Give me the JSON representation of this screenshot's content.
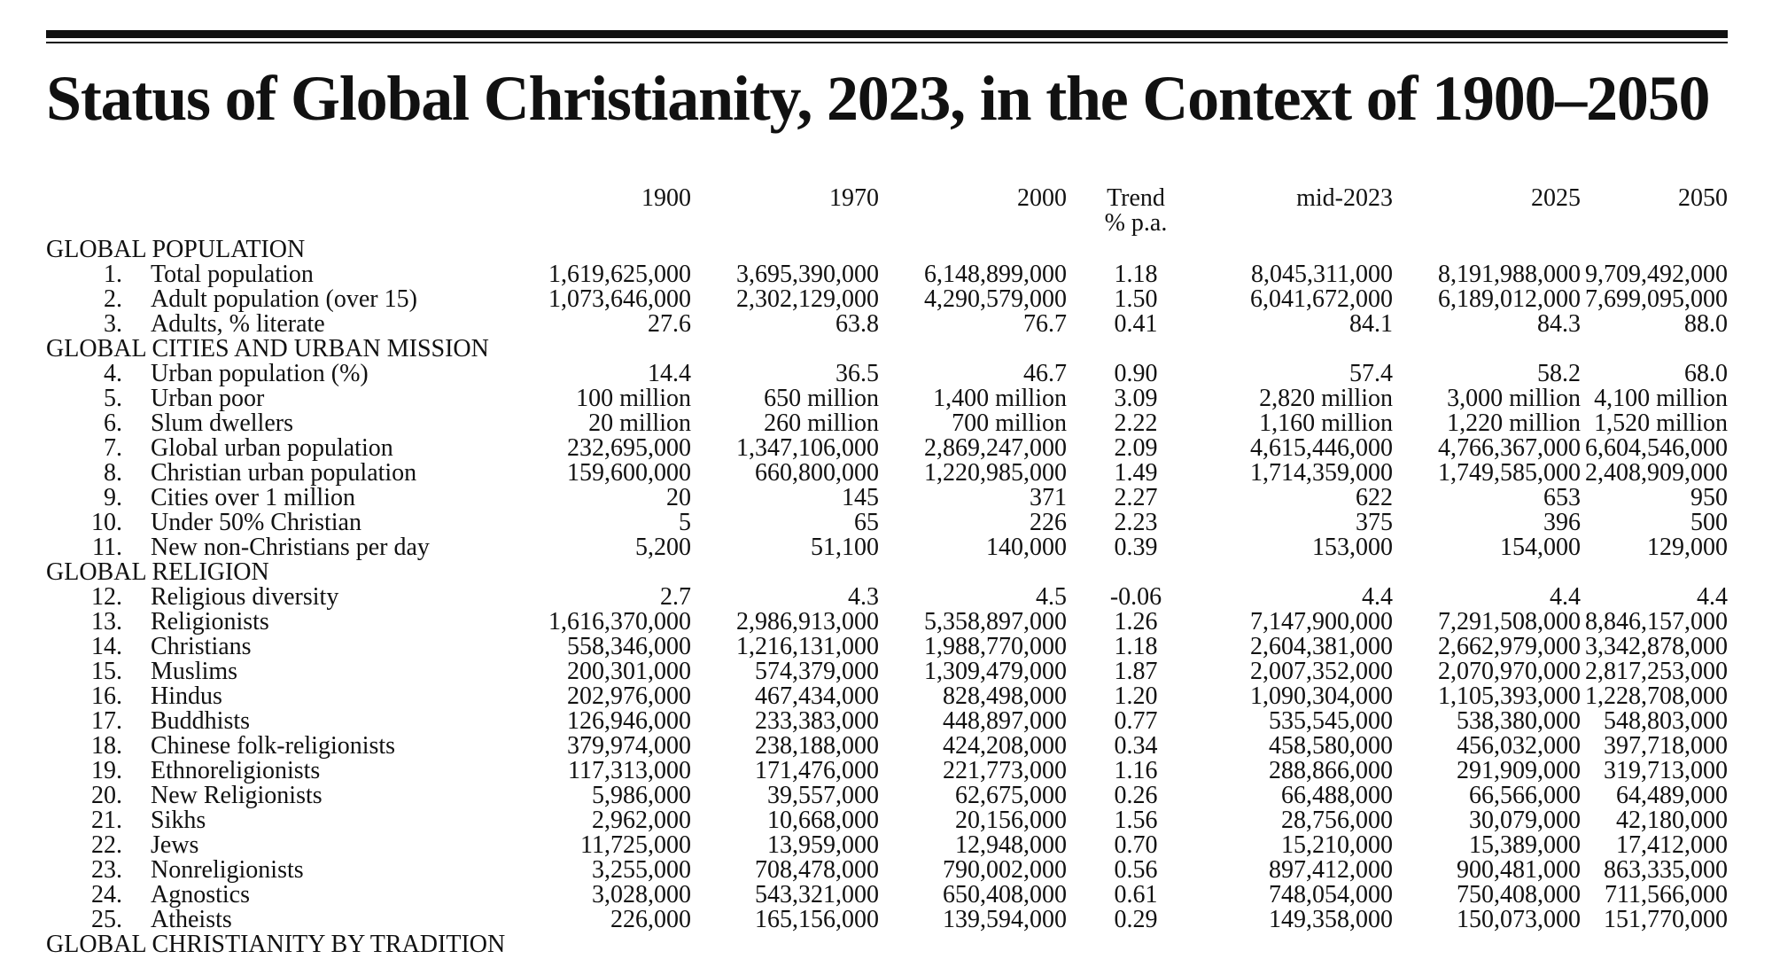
{
  "title": "Status of Global Christianity, 2023, in the Context of 1900–2050",
  "columns": {
    "c1900": "1900",
    "c1970": "1970",
    "c2000": "2000",
    "trend_line1": "Trend",
    "trend_line2": "% p.a.",
    "cmid2023": "mid-2023",
    "c2025": "2025",
    "c2050": "2050"
  },
  "sections": [
    {
      "title": "GLOBAL POPULATION",
      "rows": [
        {
          "n": "1.",
          "label": "Total population",
          "v1900": "1,619,625,000",
          "v1970": "3,695,390,000",
          "v2000": "6,148,899,000",
          "trend": "1.18",
          "v2023": "8,045,311,000",
          "v2025": "8,191,988,000",
          "v2050": "9,709,492,000"
        },
        {
          "n": "2.",
          "label": "Adult population (over 15)",
          "v1900": "1,073,646,000",
          "v1970": "2,302,129,000",
          "v2000": "4,290,579,000",
          "trend": "1.50",
          "v2023": "6,041,672,000",
          "v2025": "6,189,012,000",
          "v2050": "7,699,095,000"
        },
        {
          "n": "3.",
          "label": "Adults, % literate",
          "v1900": "27.6",
          "v1970": "63.8",
          "v2000": "76.7",
          "trend": "0.41",
          "v2023": "84.1",
          "v2025": "84.3",
          "v2050": "88.0"
        }
      ]
    },
    {
      "title": "GLOBAL CITIES AND URBAN MISSION",
      "rows": [
        {
          "n": "4.",
          "label": "Urban population (%)",
          "v1900": "14.4",
          "v1970": "36.5",
          "v2000": "46.7",
          "trend": "0.90",
          "v2023": "57.4",
          "v2025": "58.2",
          "v2050": "68.0"
        },
        {
          "n": "5.",
          "label": "Urban poor",
          "v1900": "100 million",
          "v1970": "650 million",
          "v2000": "1,400 million",
          "trend": "3.09",
          "v2023": "2,820 million",
          "v2025": "3,000 million",
          "v2050": "4,100 million"
        },
        {
          "n": "6.",
          "label": "Slum dwellers",
          "v1900": "20 million",
          "v1970": "260 million",
          "v2000": "700 million",
          "trend": "2.22",
          "v2023": "1,160 million",
          "v2025": "1,220 million",
          "v2050": "1,520 million"
        },
        {
          "n": "7.",
          "label": "Global urban population",
          "v1900": "232,695,000",
          "v1970": "1,347,106,000",
          "v2000": "2,869,247,000",
          "trend": "2.09",
          "v2023": "4,615,446,000",
          "v2025": "4,766,367,000",
          "v2050": "6,604,546,000"
        },
        {
          "n": "8.",
          "label": "Christian urban population",
          "v1900": "159,600,000",
          "v1970": "660,800,000",
          "v2000": "1,220,985,000",
          "trend": "1.49",
          "v2023": "1,714,359,000",
          "v2025": "1,749,585,000",
          "v2050": "2,408,909,000"
        },
        {
          "n": "9.",
          "label": "Cities over 1 million",
          "v1900": "20",
          "v1970": "145",
          "v2000": "371",
          "trend": "2.27",
          "v2023": "622",
          "v2025": "653",
          "v2050": "950"
        },
        {
          "n": "10.",
          "label": "Under 50% Christian",
          "v1900": "5",
          "v1970": "65",
          "v2000": "226",
          "trend": "2.23",
          "v2023": "375",
          "v2025": "396",
          "v2050": "500"
        },
        {
          "n": "11.",
          "label": "New non-Christians per day",
          "v1900": "5,200",
          "v1970": "51,100",
          "v2000": "140,000",
          "trend": "0.39",
          "v2023": "153,000",
          "v2025": "154,000",
          "v2050": "129,000"
        }
      ]
    },
    {
      "title": "GLOBAL RELIGION",
      "rows": [
        {
          "n": "12.",
          "label": "Religious diversity",
          "v1900": "2.7",
          "v1970": "4.3",
          "v2000": "4.5",
          "trend": "-0.06",
          "v2023": "4.4",
          "v2025": "4.4",
          "v2050": "4.4"
        },
        {
          "n": "13.",
          "label": "Religionists",
          "v1900": "1,616,370,000",
          "v1970": "2,986,913,000",
          "v2000": "5,358,897,000",
          "trend": "1.26",
          "v2023": "7,147,900,000",
          "v2025": "7,291,508,000",
          "v2050": "8,846,157,000"
        },
        {
          "n": "14.",
          "label": "Christians",
          "v1900": "558,346,000",
          "v1970": "1,216,131,000",
          "v2000": "1,988,770,000",
          "trend": "1.18",
          "v2023": "2,604,381,000",
          "v2025": "2,662,979,000",
          "v2050": "3,342,878,000"
        },
        {
          "n": "15.",
          "label": "Muslims",
          "v1900": "200,301,000",
          "v1970": "574,379,000",
          "v2000": "1,309,479,000",
          "trend": "1.87",
          "v2023": "2,007,352,000",
          "v2025": "2,070,970,000",
          "v2050": "2,817,253,000"
        },
        {
          "n": "16.",
          "label": "Hindus",
          "v1900": "202,976,000",
          "v1970": "467,434,000",
          "v2000": "828,498,000",
          "trend": "1.20",
          "v2023": "1,090,304,000",
          "v2025": "1,105,393,000",
          "v2050": "1,228,708,000"
        },
        {
          "n": "17.",
          "label": "Buddhists",
          "v1900": "126,946,000",
          "v1970": "233,383,000",
          "v2000": "448,897,000",
          "trend": "0.77",
          "v2023": "535,545,000",
          "v2025": "538,380,000",
          "v2050": "548,803,000"
        },
        {
          "n": "18.",
          "label": "Chinese folk-religionists",
          "v1900": "379,974,000",
          "v1970": "238,188,000",
          "v2000": "424,208,000",
          "trend": "0.34",
          "v2023": "458,580,000",
          "v2025": "456,032,000",
          "v2050": "397,718,000"
        },
        {
          "n": "19.",
          "label": "Ethnoreligionists",
          "v1900": "117,313,000",
          "v1970": "171,476,000",
          "v2000": "221,773,000",
          "trend": "1.16",
          "v2023": "288,866,000",
          "v2025": "291,909,000",
          "v2050": "319,713,000"
        },
        {
          "n": "20.",
          "label": "New Religionists",
          "v1900": "5,986,000",
          "v1970": "39,557,000",
          "v2000": "62,675,000",
          "trend": "0.26",
          "v2023": "66,488,000",
          "v2025": "66,566,000",
          "v2050": "64,489,000"
        },
        {
          "n": "21.",
          "label": "Sikhs",
          "v1900": "2,962,000",
          "v1970": "10,668,000",
          "v2000": "20,156,000",
          "trend": "1.56",
          "v2023": "28,756,000",
          "v2025": "30,079,000",
          "v2050": "42,180,000"
        },
        {
          "n": "22.",
          "label": "Jews",
          "v1900": "11,725,000",
          "v1970": "13,959,000",
          "v2000": "12,948,000",
          "trend": "0.70",
          "v2023": "15,210,000",
          "v2025": "15,389,000",
          "v2050": "17,412,000"
        },
        {
          "n": "23.",
          "label": "Nonreligionists",
          "v1900": "3,255,000",
          "v1970": "708,478,000",
          "v2000": "790,002,000",
          "trend": "0.56",
          "v2023": "897,412,000",
          "v2025": "900,481,000",
          "v2050": "863,335,000"
        },
        {
          "n": "24.",
          "label": "Agnostics",
          "v1900": "3,028,000",
          "v1970": "543,321,000",
          "v2000": "650,408,000",
          "trend": "0.61",
          "v2023": "748,054,000",
          "v2025": "750,408,000",
          "v2050": "711,566,000"
        },
        {
          "n": "25.",
          "label": "Atheists",
          "v1900": "226,000",
          "v1970": "165,156,000",
          "v2000": "139,594,000",
          "trend": "0.29",
          "v2023": "149,358,000",
          "v2025": "150,073,000",
          "v2050": "151,770,000"
        }
      ]
    },
    {
      "title": "GLOBAL CHRISTIANITY BY TRADITION",
      "rows": []
    }
  ]
}
